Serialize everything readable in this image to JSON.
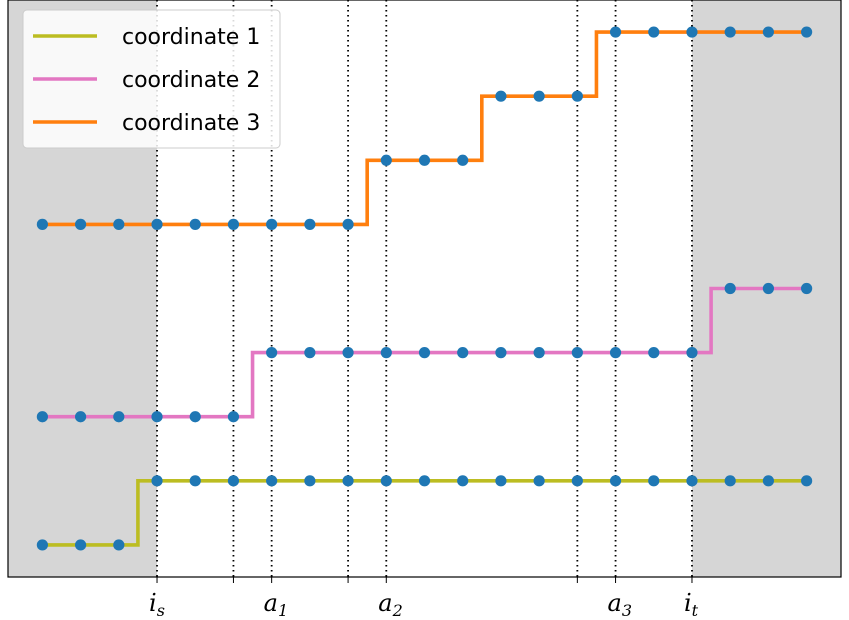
{
  "chart_data": {
    "type": "line",
    "step": "mid",
    "title": "",
    "xlabel": "",
    "ylabel": "",
    "grid": false,
    "legend_location": "upper-left",
    "x": [
      0,
      1,
      2,
      3,
      4,
      5,
      6,
      7,
      8,
      9,
      10,
      11,
      12,
      13,
      14,
      15,
      16,
      17,
      18,
      19,
      20
    ],
    "xlim": [
      -0.9,
      20.9
    ],
    "ylim": [
      0,
      9
    ],
    "shaded_outside_range": [
      3,
      17
    ],
    "shade_color": "#d6d6d6",
    "marker_color": "#1f77b4",
    "vertical_lines": [
      {
        "x": 3,
        "label_base": "i",
        "label_sub": "s"
      },
      {
        "x": 5,
        "label_base": "",
        "label_sub": ""
      },
      {
        "x": 6,
        "label_base": "a",
        "label_sub": "1"
      },
      {
        "x": 8,
        "label_base": "",
        "label_sub": ""
      },
      {
        "x": 9,
        "label_base": "a",
        "label_sub": "2"
      },
      {
        "x": 14,
        "label_base": "",
        "label_sub": ""
      },
      {
        "x": 15,
        "label_base": "a",
        "label_sub": "3"
      },
      {
        "x": 17,
        "label_base": "i",
        "label_sub": "t"
      }
    ],
    "series": [
      {
        "name": "coordinate 1",
        "color": "#bcbd22",
        "values": [
          0.5,
          0.5,
          0.5,
          1.5,
          1.5,
          1.5,
          1.5,
          1.5,
          1.5,
          1.5,
          1.5,
          1.5,
          1.5,
          1.5,
          1.5,
          1.5,
          1.5,
          1.5,
          1.5,
          1.5,
          1.5
        ]
      },
      {
        "name": "coordinate 2",
        "color": "#e377c2",
        "values": [
          2.5,
          2.5,
          2.5,
          2.5,
          2.5,
          2.5,
          3.5,
          3.5,
          3.5,
          3.5,
          3.5,
          3.5,
          3.5,
          3.5,
          3.5,
          3.5,
          3.5,
          3.5,
          4.5,
          4.5,
          4.5
        ]
      },
      {
        "name": "coordinate 3",
        "color": "#ff7f0e",
        "values": [
          5.5,
          5.5,
          5.5,
          5.5,
          5.5,
          5.5,
          5.5,
          5.5,
          5.5,
          6.5,
          6.5,
          6.5,
          7.5,
          7.5,
          7.5,
          8.5,
          8.5,
          8.5,
          8.5,
          8.5,
          8.5
        ]
      }
    ]
  }
}
